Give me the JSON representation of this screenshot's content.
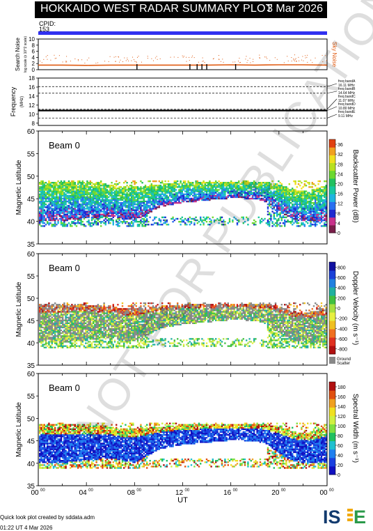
{
  "header": {
    "title": "HOKKAIDO WEST RADAR SUMMARY PLOT",
    "date": "3 Mar 2026",
    "cpid_label": "CPID:",
    "cpid_value": "153"
  },
  "footer": {
    "credit": "Quick look plot created by sddata.adm",
    "stamp": "01:22 UT  4 Mar 2026"
  },
  "watermark": "NOT FOR PUBLICATION",
  "colors": {
    "title_bar": "#000000",
    "cpid_bar": "#3030f0",
    "noise_series": "#e05a10",
    "ground_scatter": "#888888"
  },
  "chart_data": [
    {
      "type": "line",
      "title": "",
      "ylabel": "Search Noise",
      "ylabel_sub": "log scale (x 10^2 scale)",
      "ylim": [
        0,
        10
      ],
      "yticks": [
        0,
        2,
        4,
        6,
        8,
        10
      ],
      "right_label": "Sky Noise",
      "series": [
        {
          "name": "Sky Noise",
          "x": [
            0,
            2,
            4,
            6,
            8,
            10,
            12,
            14,
            16,
            18,
            20,
            22,
            24
          ],
          "y": [
            1.5,
            1.5,
            1.4,
            1.5,
            1.5,
            1.5,
            1.5,
            1.5,
            1.6,
            1.5,
            1.6,
            1.6,
            1.5
          ]
        }
      ],
      "spikes_x": [
        8.2,
        12.6,
        13.2,
        13.6,
        14.0,
        16.4
      ],
      "spikes_y": [
        1.0,
        0.8,
        0.5,
        0.5,
        0.4,
        1.6
      ]
    },
    {
      "type": "line",
      "ylabel": "Frequency",
      "yunit": "(MHz)",
      "ylim": [
        7.5,
        18
      ],
      "yticks": [
        8,
        10,
        12,
        14,
        16,
        18
      ],
      "bands": [
        {
          "name": "freq bandA",
          "value": 16.11,
          "label": "16.11 MHz"
        },
        {
          "name": "freq bandB",
          "value": 14.64,
          "label": "14.64 MHz"
        },
        {
          "name": "freq bandC",
          "value": 11.07,
          "label": "11.07 MHz"
        },
        {
          "name": "freq bandD",
          "value": 10.8,
          "label": "10.80 MHz"
        },
        {
          "name": "freq bandE",
          "value": 9.11,
          "label": "9.11 MHz"
        }
      ],
      "series": [
        {
          "name": "operating frequency",
          "x": [
            0,
            24
          ],
          "y": [
            10.8,
            10.8
          ]
        }
      ]
    },
    {
      "type": "heatmap",
      "beam_label": "Beam  0",
      "ylabel": "Magnetic Latitude",
      "ylim": [
        35,
        60
      ],
      "yticks": [
        35,
        40,
        45,
        50,
        55,
        60
      ],
      "colorbar_label": "Backscatter Power (dB)",
      "colorbar_ticks": [
        0,
        4,
        8,
        12,
        16,
        20,
        24,
        28,
        32,
        36
      ],
      "colorbar_range": [
        0,
        38
      ],
      "envelope": {
        "x": [
          0,
          2,
          4,
          6,
          7,
          8,
          10,
          12,
          14,
          16,
          18,
          19,
          20,
          21,
          22,
          23,
          24
        ],
        "lower": [
          40,
          40,
          40.5,
          41,
          40.5,
          40,
          43,
          44,
          44.5,
          45,
          44.8,
          44,
          42,
          40.5,
          40,
          40,
          40
        ],
        "upper": [
          48.5,
          48.5,
          48.5,
          48,
          47.5,
          47.5,
          48,
          48.5,
          48.5,
          48.5,
          48.5,
          48.5,
          48,
          47,
          46.5,
          47,
          48
        ]
      }
    },
    {
      "type": "heatmap",
      "beam_label": "Beam  0",
      "ylabel": "Magnetic Latitude",
      "ylim": [
        35,
        60
      ],
      "yticks": [
        35,
        40,
        45,
        50,
        55,
        60
      ],
      "colorbar_label": "Doppler Velocity (m s⁻¹)",
      "colorbar_ticks": [
        -800,
        -600,
        -400,
        -200,
        0,
        200,
        400,
        600,
        800
      ],
      "colorbar_range": [
        -900,
        900
      ],
      "ground_scatter_label": [
        "Ground",
        "Scatter"
      ],
      "envelope": {
        "x": [
          0,
          2,
          4,
          6,
          7,
          8,
          10,
          12,
          14,
          16,
          18,
          19,
          20,
          21,
          22,
          23,
          24
        ],
        "lower": [
          40,
          40,
          40.5,
          41,
          40.5,
          40,
          43,
          44,
          44.5,
          45,
          44.8,
          44,
          42,
          40.5,
          40,
          40,
          40
        ],
        "upper": [
          48.5,
          48.5,
          48.5,
          48,
          47.5,
          47.5,
          48,
          48.5,
          48.5,
          48.5,
          48.5,
          48.5,
          48,
          47,
          46.5,
          47,
          48
        ]
      }
    },
    {
      "type": "heatmap",
      "beam_label": "Beam  0",
      "ylabel": "Magnetic Latitude",
      "ylim": [
        35,
        60
      ],
      "yticks": [
        35,
        40,
        45,
        50,
        55,
        60
      ],
      "xlabel": "UT",
      "xticks": [
        "00",
        "04",
        "08",
        "12",
        "16",
        "20",
        "00"
      ],
      "xtick_sup": "00",
      "xlim": [
        0,
        24
      ],
      "colorbar_label": "Spectral Width (m s⁻¹)",
      "colorbar_ticks": [
        0,
        20,
        40,
        60,
        80,
        100,
        120,
        140,
        160,
        180
      ],
      "colorbar_range": [
        0,
        190
      ],
      "envelope": {
        "x": [
          0,
          2,
          4,
          6,
          7,
          8,
          10,
          12,
          14,
          16,
          18,
          19,
          20,
          21,
          22,
          23,
          24
        ],
        "lower": [
          40,
          40,
          40.5,
          41,
          40.5,
          40,
          43,
          44,
          44.5,
          45,
          44.8,
          44,
          42,
          40.5,
          40,
          40,
          40
        ],
        "upper": [
          48.5,
          48.5,
          48.5,
          48,
          47.5,
          47.5,
          48,
          48.5,
          48.5,
          48.5,
          48.5,
          48.5,
          48,
          47,
          46.5,
          47,
          48
        ]
      }
    }
  ]
}
